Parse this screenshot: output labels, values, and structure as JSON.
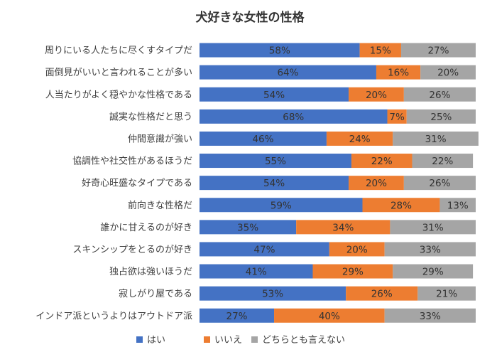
{
  "chart_data": {
    "type": "bar",
    "orientation": "horizontal",
    "stacked": true,
    "percent": true,
    "title": "犬好きな女性の性格",
    "categories": [
      "周りにいる人たちに尽くすタイプだ",
      "面倒見がいいと言われることが多い",
      "人当たりがよく穏やかな性格である",
      "誠実な性格だと思う",
      "仲間意識が強い",
      "協調性や社交性があるほうだ",
      "好奇心旺盛なタイプである",
      "前向きな性格だ",
      "誰かに甘えるのが好き",
      "スキンシップをとるのが好き",
      "独占欲は強いほうだ",
      "寂しがり屋である",
      "インドア派というよりはアウトドア派"
    ],
    "series": [
      {
        "name": "はい",
        "color": "#4472C4",
        "values": [
          58,
          64,
          54,
          68,
          46,
          55,
          54,
          59,
          35,
          47,
          41,
          53,
          27
        ]
      },
      {
        "name": "いいえ",
        "color": "#ED7D31",
        "values": [
          15,
          16,
          20,
          7,
          24,
          22,
          20,
          28,
          34,
          20,
          29,
          26,
          40
        ]
      },
      {
        "name": "どちらとも言えない",
        "color": "#A5A5A5",
        "values": [
          27,
          20,
          26,
          25,
          31,
          22,
          26,
          13,
          31,
          33,
          29,
          21,
          33
        ]
      }
    ],
    "value_suffix": "%",
    "xlim": [
      0,
      100
    ],
    "legend_position": "bottom",
    "grid": false
  }
}
